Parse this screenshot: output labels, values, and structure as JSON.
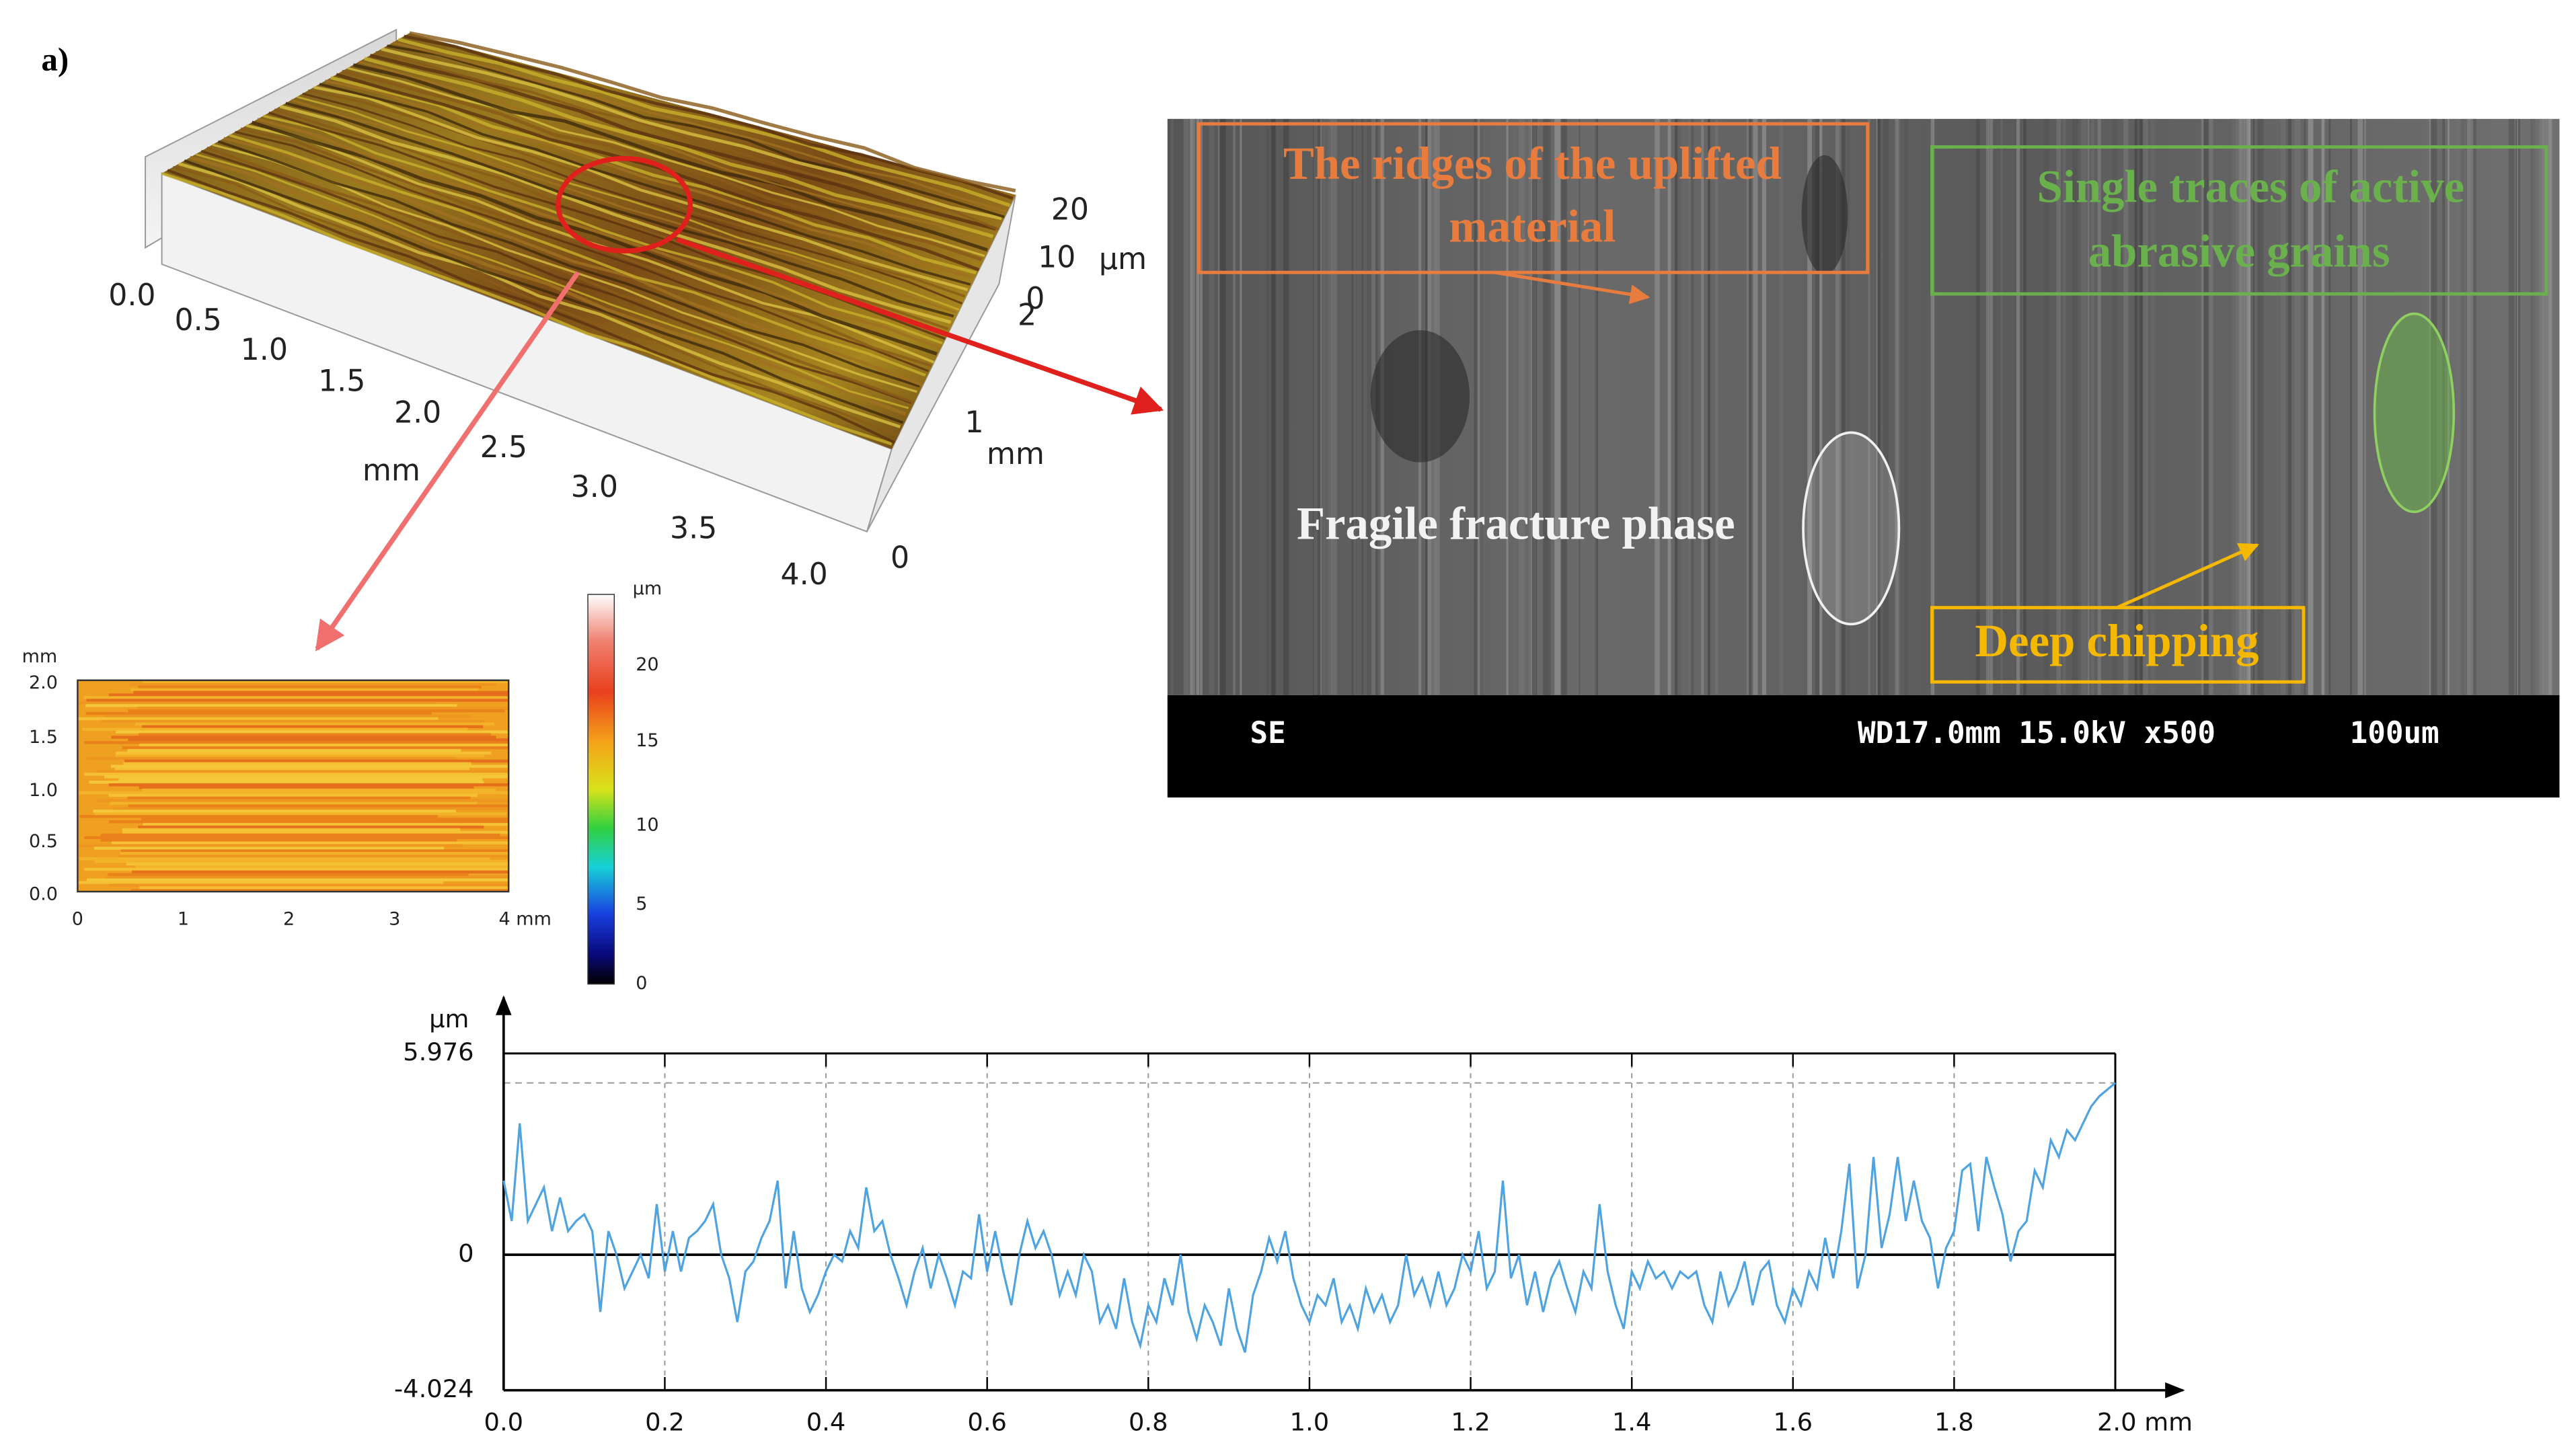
{
  "panel_label": "a)",
  "surface_3d": {
    "x_ticks": [
      "0.0",
      "0.5",
      "1.0",
      "1.5",
      "2.0",
      "2.5",
      "3.0",
      "3.5",
      "4.0"
    ],
    "x_unit": "mm",
    "y_ticks": [
      "0",
      "1",
      "2"
    ],
    "y_unit": "mm",
    "z_ticks": [
      "0",
      "10",
      "20"
    ],
    "z_unit": "µm"
  },
  "height_map": {
    "y_unit": "mm",
    "y_ticks": [
      "0.0",
      "0.5",
      "1.0",
      "1.5",
      "2.0"
    ],
    "x_ticks": [
      "0",
      "1",
      "2",
      "3",
      "4 mm"
    ],
    "colorbar_unit": "µm",
    "colorbar_ticks": [
      "0",
      "5",
      "10",
      "15",
      "20"
    ]
  },
  "sem_image": {
    "ridges_label": [
      "The ridges of the uplifted",
      "material"
    ],
    "traces_label": [
      "Single traces of active",
      "abrasive grains"
    ],
    "fracture_label": "Fragile fracture phase",
    "chipping_label": "Deep chipping",
    "footer_mode": "SE",
    "footer_settings": "WD17.0mm 15.0kV x500",
    "footer_scale": "100um"
  },
  "chart_data": {
    "type": "line",
    "y_label": "µm",
    "color": "#4ea3e0",
    "x": [
      0,
      0.01,
      0.02,
      0.03,
      0.04,
      0.05,
      0.06,
      0.07,
      0.08,
      0.09,
      0.1,
      0.11,
      0.12,
      0.13,
      0.14,
      0.15,
      0.16,
      0.17,
      0.18,
      0.19,
      0.2,
      0.21,
      0.22,
      0.23,
      0.24,
      0.25,
      0.26,
      0.27,
      0.28,
      0.29,
      0.3,
      0.31,
      0.32,
      0.33,
      0.34,
      0.35,
      0.36,
      0.37,
      0.38,
      0.39,
      0.4,
      0.41,
      0.42,
      0.43,
      0.44,
      0.45,
      0.46,
      0.47,
      0.48,
      0.49,
      0.5,
      0.51,
      0.52,
      0.53,
      0.54,
      0.55,
      0.56,
      0.57,
      0.58,
      0.59,
      0.6,
      0.61,
      0.62,
      0.63,
      0.64,
      0.65,
      0.66,
      0.67,
      0.68,
      0.69,
      0.7,
      0.71,
      0.72,
      0.73,
      0.74,
      0.75,
      0.76,
      0.77,
      0.78,
      0.79,
      0.8,
      0.81,
      0.82,
      0.83,
      0.84,
      0.85,
      0.86,
      0.87,
      0.88,
      0.89,
      0.9,
      0.91,
      0.92,
      0.93,
      0.94,
      0.95,
      0.96,
      0.97,
      0.98,
      0.99,
      1,
      1.01,
      1.02,
      1.03,
      1.04,
      1.05,
      1.06,
      1.07,
      1.08,
      1.09,
      1.1,
      1.11,
      1.12,
      1.13,
      1.14,
      1.15,
      1.16,
      1.17,
      1.18,
      1.19,
      1.2,
      1.21,
      1.22,
      1.23,
      1.24,
      1.25,
      1.26,
      1.27,
      1.28,
      1.29,
      1.3,
      1.31,
      1.32,
      1.33,
      1.34,
      1.35,
      1.36,
      1.37,
      1.38,
      1.39,
      1.4,
      1.41,
      1.42,
      1.43,
      1.44,
      1.45,
      1.46,
      1.47,
      1.48,
      1.49,
      1.5,
      1.51,
      1.52,
      1.53,
      1.54,
      1.55,
      1.56,
      1.57,
      1.58,
      1.59,
      1.6,
      1.61,
      1.62,
      1.63,
      1.64,
      1.65,
      1.66,
      1.67,
      1.68,
      1.69,
      1.7,
      1.71,
      1.72,
      1.73,
      1.74,
      1.75,
      1.76,
      1.77,
      1.78,
      1.79,
      1.8,
      1.81,
      1.82,
      1.83,
      1.84,
      1.85,
      1.86,
      1.87,
      1.88,
      1.89,
      1.9,
      1.91,
      1.92,
      1.93,
      1.94,
      1.95,
      1.96,
      1.97,
      1.98,
      1.99,
      2
    ],
    "values": [
      2.2,
      1.0,
      3.9,
      1.0,
      1.5,
      2.0,
      0.7,
      1.7,
      0.7,
      1.0,
      1.2,
      0.7,
      -1.7,
      0.7,
      0,
      -1.0,
      -0.5,
      0,
      -0.7,
      1.5,
      -0.5,
      0.7,
      -0.5,
      0.5,
      0.7,
      1.0,
      1.5,
      0,
      -0.7,
      -2.0,
      -0.5,
      -0.2,
      0.5,
      1.0,
      2.2,
      -1.0,
      0.7,
      -1.0,
      -1.7,
      -1.2,
      -0.5,
      0,
      -0.2,
      0.7,
      0.2,
      2.0,
      0.7,
      1.0,
      0,
      -0.7,
      -1.5,
      -0.5,
      0.2,
      -1.0,
      0,
      -0.7,
      -1.5,
      -0.5,
      -0.7,
      1.2,
      -0.5,
      0.7,
      -0.5,
      -1.5,
      0,
      1.0,
      0.2,
      0.7,
      0,
      -1.2,
      -0.5,
      -1.2,
      0,
      -0.5,
      -2.0,
      -1.5,
      -2.2,
      -0.7,
      -2.0,
      -2.7,
      -1.5,
      -2.0,
      -0.7,
      -1.5,
      0,
      -1.7,
      -2.5,
      -1.5,
      -2.0,
      -2.7,
      -1.0,
      -2.2,
      -2.9,
      -1.2,
      -0.5,
      0.5,
      -0.2,
      0.7,
      -0.7,
      -1.5,
      -2.0,
      -1.2,
      -1.5,
      -0.7,
      -2.0,
      -1.5,
      -2.2,
      -1.0,
      -1.7,
      -1.2,
      -2.0,
      -1.5,
      0,
      -1.2,
      -0.7,
      -1.5,
      -0.5,
      -1.5,
      -1.0,
      0,
      -0.5,
      0.7,
      -1.0,
      -0.5,
      2.2,
      -0.7,
      0,
      -1.5,
      -0.5,
      -1.7,
      -0.7,
      -0.2,
      -1.0,
      -1.7,
      -0.5,
      -1.0,
      1.5,
      -0.5,
      -1.5,
      -2.2,
      -0.5,
      -1.0,
      -0.2,
      -0.7,
      -0.5,
      -1.0,
      -0.5,
      -0.7,
      -0.5,
      -1.5,
      -2.0,
      -0.5,
      -1.5,
      -1.0,
      -0.2,
      -1.5,
      -0.5,
      -0.2,
      -1.5,
      -2.0,
      -1.0,
      -1.5,
      -0.5,
      -1.0,
      0.5,
      -0.7,
      0.7,
      2.7,
      -1.0,
      0,
      2.9,
      0.2,
      1.2,
      2.9,
      1.0,
      2.2,
      1.0,
      0.5,
      -1.0,
      0.2,
      0.7,
      2.5,
      2.7,
      0.7,
      2.9,
      2.0,
      1.2,
      -0.2,
      0.7,
      1.0,
      2.5,
      2.0,
      3.4,
      2.9,
      3.7,
      3.4,
      3.9,
      4.4,
      4.7,
      4.9,
      5.1
    ],
    "xlim": [
      0,
      2
    ],
    "xticks": [
      {
        "value": 0,
        "label": "0.0"
      },
      0.2,
      0.4,
      0.6,
      0.8,
      {
        "value": 1,
        "label": "1.0"
      },
      1.2,
      1.4,
      1.6,
      1.8,
      {
        "value": 2,
        "label": "2.0 mm"
      }
    ],
    "ylim": [
      -4.024,
      5.976
    ],
    "yticks": [
      -4.024,
      0,
      5.976
    ],
    "grid": true
  }
}
